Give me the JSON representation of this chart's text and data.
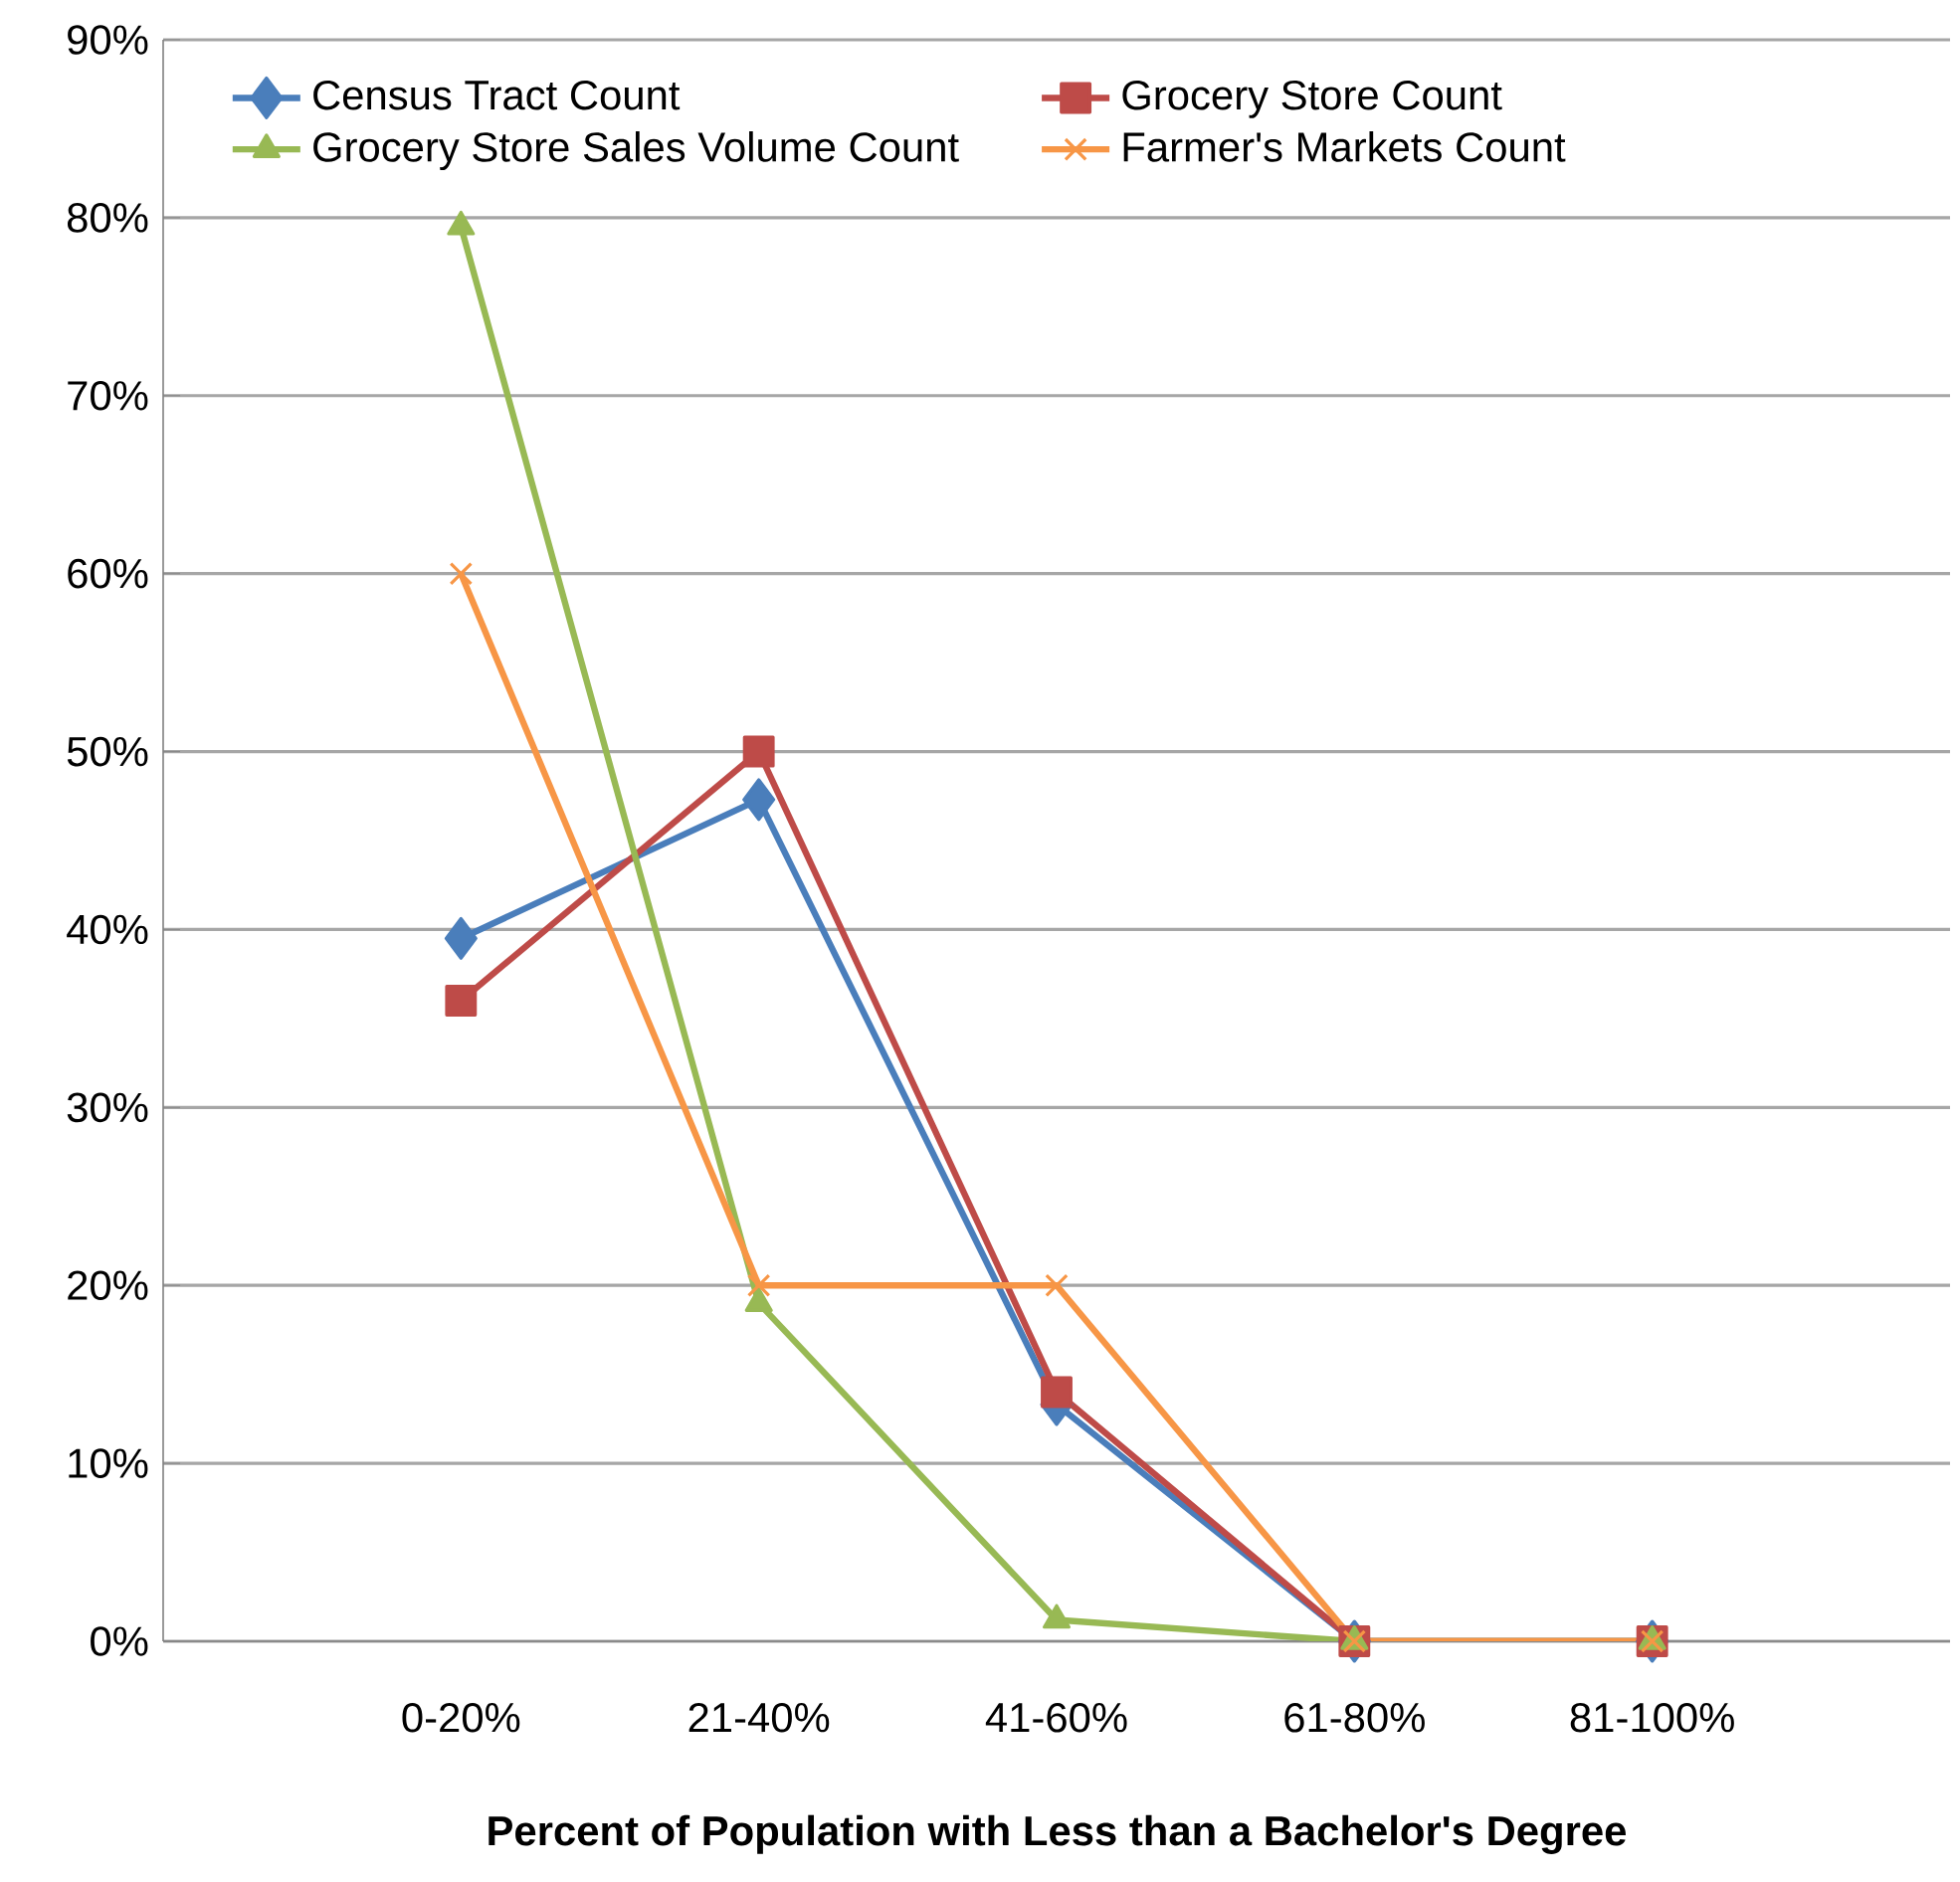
{
  "chart_data": {
    "type": "line",
    "xlabel": "Percent of Population with Less than a Bachelor's Degree",
    "categories": [
      "0-20%",
      "21-40%",
      "41-60%",
      "61-80%",
      "81-100%"
    ],
    "series": [
      {
        "name": "Census Tract Count",
        "color": "#4a7ebb",
        "marker": "diamond",
        "values": [
          39.5,
          47.3,
          13.3,
          0,
          0
        ]
      },
      {
        "name": "Grocery Store Count",
        "color": "#be4b48",
        "marker": "square",
        "values": [
          36,
          50,
          14,
          0,
          0
        ]
      },
      {
        "name": "Grocery Store Sales Volume Count",
        "color": "#98b954",
        "marker": "triangle",
        "values": [
          79.5,
          19,
          1.2,
          0,
          0
        ]
      },
      {
        "name": "Farmer's Markets Count",
        "color": "#f79646",
        "marker": "cross",
        "values": [
          60,
          20,
          20,
          0,
          0
        ]
      }
    ],
    "ylim": [
      0,
      90
    ],
    "yticks": [
      {
        "value": 0,
        "label": "0%"
      },
      {
        "value": 10,
        "label": "10%"
      },
      {
        "value": 20,
        "label": "20%"
      },
      {
        "value": 30,
        "label": "30%"
      },
      {
        "value": 40,
        "label": "40%"
      },
      {
        "value": 50,
        "label": "50%"
      },
      {
        "value": 60,
        "label": "60%"
      },
      {
        "value": 70,
        "label": "70%"
      },
      {
        "value": 80,
        "label": "80%"
      },
      {
        "value": 90,
        "label": "90%"
      }
    ],
    "grid": "y",
    "legend": "top",
    "line_style": "solid"
  }
}
